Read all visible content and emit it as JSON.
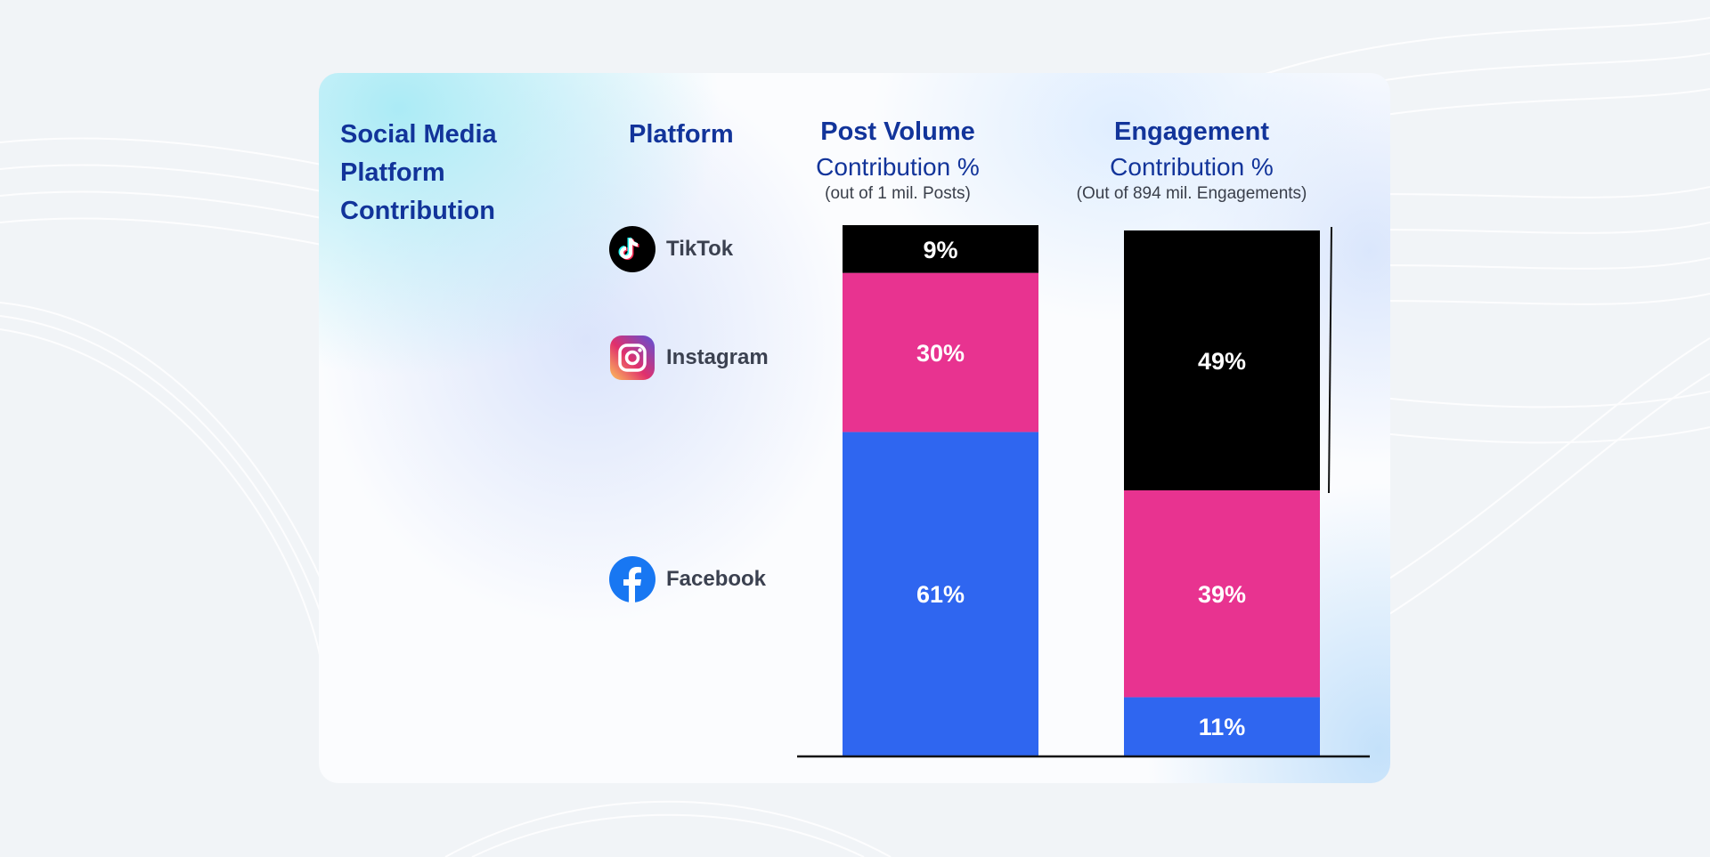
{
  "title": "Social Media Platform Contribution",
  "platform_header": "Platform",
  "platforms": [
    {
      "name": "TikTok",
      "icon": "tiktok-icon"
    },
    {
      "name": "Instagram",
      "icon": "instagram-icon"
    },
    {
      "name": "Facebook",
      "icon": "facebook-icon"
    }
  ],
  "colors": {
    "tiktok": "#000000",
    "instagram": "#e83390",
    "facebook": "#2f66f0",
    "heading": "#12349a"
  },
  "chart_data": {
    "type": "bar",
    "stacked": true,
    "unit": "%",
    "categories": [
      "Post Volume Contribution %",
      "Engagement Contribution %"
    ],
    "category_headings": [
      {
        "title": "Post Volume",
        "subtitle": "Contribution %",
        "note": "(out of 1 mil. Posts)"
      },
      {
        "title": "Engagement",
        "subtitle": "Contribution %",
        "note": "(Out of 894 mil. Engagements)"
      }
    ],
    "series": [
      {
        "name": "Facebook",
        "values": [
          61,
          11
        ],
        "labels": [
          "61%",
          "11%"
        ]
      },
      {
        "name": "Instagram",
        "values": [
          30,
          39
        ],
        "labels": [
          "30%",
          "39%"
        ]
      },
      {
        "name": "TikTok",
        "values": [
          9,
          49
        ],
        "labels": [
          "9%",
          "49%"
        ]
      }
    ],
    "ylim": [
      0,
      100
    ],
    "xlabel": "",
    "ylabel": ""
  }
}
